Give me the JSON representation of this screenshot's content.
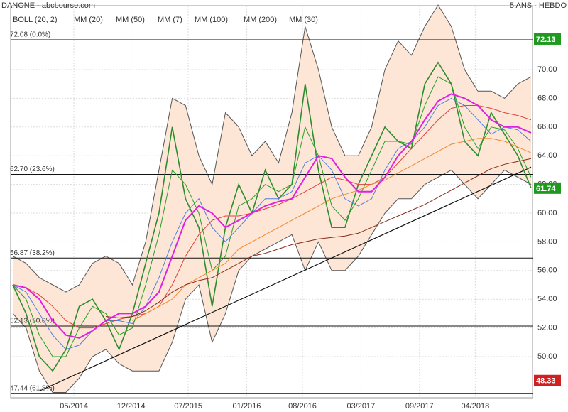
{
  "chart_data": {
    "type": "line",
    "title": "DANONE - abcbourse.com",
    "subtitle": "5 ANS - HEBDO",
    "xlim": [
      0,
      39
    ],
    "xticks": [
      {
        "value": 4.6,
        "label": "05/2014"
      },
      {
        "value": 8.9,
        "label": "12/2014"
      },
      {
        "value": 13.2,
        "label": "07/2015"
      },
      {
        "value": 17.6,
        "label": "01/2016"
      },
      {
        "value": 21.8,
        "label": "08/2016"
      },
      {
        "value": 26.2,
        "label": "03/2017"
      },
      {
        "value": 30.6,
        "label": "09/2017"
      },
      {
        "value": 34.8,
        "label": "04/2018"
      }
    ],
    "ylim": [
      47.13,
      74.85
    ],
    "yticks": [
      {
        "value": 50,
        "label": "50.00"
      },
      {
        "value": 52,
        "label": "52.00"
      },
      {
        "value": 54,
        "label": "54.00"
      },
      {
        "value": 56,
        "label": "56.00"
      },
      {
        "value": 58,
        "label": "58.00"
      },
      {
        "value": 60,
        "label": "60.00"
      },
      {
        "value": 62,
        "label": "62.00"
      },
      {
        "value": 64,
        "label": "64.00"
      },
      {
        "value": 66,
        "label": "66.00"
      },
      {
        "value": 68,
        "label": "68.00"
      },
      {
        "value": 70,
        "label": "70.00"
      }
    ],
    "grid": true,
    "price": {
      "color": "#2e8b2e",
      "values": [
        55,
        53,
        50,
        49,
        50.5,
        53.5,
        54,
        52.5,
        50.5,
        53,
        56.5,
        60,
        66,
        61,
        59,
        53.5,
        59,
        62,
        60,
        63,
        61,
        62,
        69,
        63,
        59,
        59,
        62,
        64,
        66,
        65,
        64.5,
        69,
        70.5,
        69,
        65,
        64,
        67,
        65.5,
        64,
        61.74
      ]
    },
    "bollinger": {
      "name": "BOLL (20, 2)",
      "color": "#555555",
      "fill": "#fde6d6",
      "upper": [
        57,
        56.5,
        55.5,
        55,
        54.5,
        55,
        56.5,
        57,
        56.5,
        55,
        58,
        63,
        68,
        67.5,
        64,
        62,
        67,
        66,
        64,
        65,
        63.5,
        67,
        73,
        70,
        66,
        64,
        64,
        66,
        70,
        72,
        71,
        73,
        74.5,
        73,
        70,
        68.5,
        68.5,
        68,
        69,
        69.5
      ],
      "lower": [
        53,
        52,
        49,
        47.5,
        47.5,
        48.5,
        50,
        50.5,
        49.5,
        49,
        49,
        49,
        51,
        54,
        55,
        51,
        53,
        56,
        57,
        57.5,
        58,
        58.5,
        56,
        58,
        56,
        56,
        57,
        58.5,
        60,
        61,
        61,
        62,
        62.5,
        63,
        62,
        61,
        62,
        63,
        62.5,
        62
      ]
    },
    "series": [
      {
        "name": "MM (20)",
        "color": "#4f7fe0",
        "values": [
          55,
          54.5,
          53,
          51.5,
          50.5,
          50.8,
          51.8,
          52.5,
          52.5,
          52.3,
          53.5,
          55.5,
          58,
          60,
          61,
          59,
          58,
          59,
          60,
          61,
          61,
          61.5,
          63.5,
          64,
          63,
          61,
          60.5,
          61,
          63,
          64.5,
          65,
          66,
          67.5,
          68,
          67.5,
          66.5,
          65.5,
          66,
          65.8,
          65
        ]
      },
      {
        "name": "MM (50)",
        "color": "#e04040",
        "values": [
          55,
          54.8,
          54.3,
          53.5,
          52.5,
          52,
          52,
          52.3,
          52.6,
          52.8,
          53,
          53.5,
          55,
          57,
          58.5,
          59.5,
          59.8,
          59.8,
          60,
          60.3,
          60.6,
          61,
          61.5,
          62,
          62.5,
          62.3,
          62,
          62,
          62.5,
          63.5,
          64.5,
          65.5,
          66.5,
          67.3,
          67.5,
          67.5,
          67.3,
          67,
          66.8,
          66.5
        ]
      },
      {
        "name": "MM (7)",
        "color": "#22a022",
        "values": [
          55,
          54,
          51.5,
          50,
          50,
          52,
          53.5,
          53,
          51.5,
          52,
          55,
          58.5,
          63,
          62,
          60,
          56,
          57,
          60.5,
          61,
          62,
          61.5,
          62,
          66,
          64,
          60.5,
          59.5,
          61,
          63,
          65,
          65,
          64.8,
          67.5,
          69.5,
          69,
          66,
          64.5,
          66,
          65.8,
          64.5,
          62.5
        ]
      },
      {
        "name": "MM (100)",
        "color": "#f08a30",
        "values": [
          null,
          null,
          null,
          null,
          null,
          null,
          null,
          null,
          null,
          52.5,
          53,
          53.5,
          54,
          55,
          55.5,
          56,
          56.5,
          57.5,
          58,
          58.5,
          59,
          59.5,
          60,
          60.5,
          61,
          61.3,
          61.6,
          62,
          62.3,
          62.8,
          63.3,
          63.8,
          64.3,
          64.8,
          65,
          65.2,
          65.2,
          65,
          64.6,
          64.2
        ]
      },
      {
        "name": "MM (200)",
        "color": "#8b2a1a",
        "values": [
          null,
          null,
          null,
          null,
          null,
          null,
          null,
          52.8,
          52.7,
          52.8,
          53.2,
          53.8,
          54.5,
          55,
          55.3,
          55.5,
          56,
          56.5,
          57,
          57.2,
          57.5,
          57.8,
          58,
          58.2,
          58.3,
          58.4,
          58.6,
          59,
          59.4,
          59.8,
          60.2,
          60.6,
          61.1,
          61.6,
          62.1,
          62.6,
          63.1,
          63.4,
          63.6,
          63.8
        ]
      },
      {
        "name": "MM (30)",
        "color": "#e020e0",
        "values": [
          55,
          54.8,
          54,
          52.5,
          51.5,
          51.3,
          51.8,
          52.5,
          53,
          53,
          53.5,
          54.5,
          57,
          59.5,
          60.5,
          60,
          59,
          59.5,
          60,
          60.5,
          60.8,
          61,
          62.5,
          64,
          63.8,
          62.5,
          61.5,
          61.5,
          62.5,
          64,
          65,
          66.5,
          67.8,
          68.3,
          68,
          67.5,
          66.5,
          66,
          66,
          65.6
        ]
      }
    ],
    "trendline": {
      "x": [
        2,
        39
      ],
      "values": [
        47.6,
        63.2
      ]
    },
    "levels": [
      {
        "value": 72.08,
        "label": "72.08  (0.0%)"
      },
      {
        "value": 62.7,
        "label": "62.70  (23.6%)"
      },
      {
        "value": 56.87,
        "label": "56.87  (38.2%)"
      },
      {
        "value": 52.13,
        "label": "52.13  (50.0%)"
      },
      {
        "value": 47.44,
        "label": "47.44  (61.8%)"
      }
    ],
    "price_tags": [
      {
        "value": 72.13,
        "color": "#1f9a1f"
      },
      {
        "value": 61.74,
        "color": "#1f9a1f"
      },
      {
        "value": 48.33,
        "color": "#d02020"
      }
    ]
  }
}
